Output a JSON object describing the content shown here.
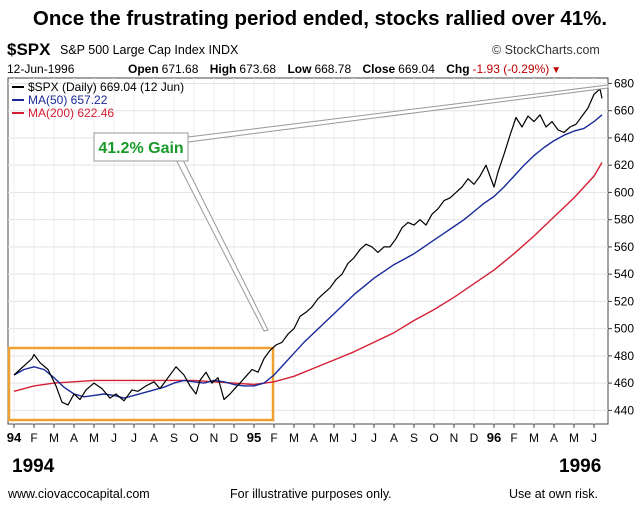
{
  "headline": "Once the frustrating period ended, stocks rallied over 41%.",
  "symbol": "$SPX",
  "subtitle": "S&P 500 Large Cap Index INDX",
  "brand": "© StockCharts.com",
  "date": "12-Jun-1996",
  "quote": {
    "open_label": "Open",
    "open": "671.68",
    "high_label": "High",
    "high": "673.68",
    "low_label": "Low",
    "low": "668.78",
    "close_label": "Close",
    "close": "669.04",
    "chg_label": "Chg",
    "chg": "-1.93 (-0.29%)"
  },
  "footer": {
    "year_start": "1994",
    "year_end": "1996",
    "website": "www.ciovaccocapital.com",
    "disclaimer": "For illustrative purposes only.",
    "risk": "Use at own risk."
  },
  "colors": {
    "price": "#000000",
    "ma50": "#1a2a99",
    "ma200": "#d42035",
    "box": "#f0a030",
    "gain": "#1a9a2a"
  },
  "chart_data": {
    "type": "line",
    "ylim": [
      430,
      684
    ],
    "y_ticks": [
      440,
      460,
      480,
      500,
      520,
      540,
      560,
      580,
      600,
      620,
      640,
      660,
      680
    ],
    "x_labels": [
      "94",
      "F",
      "M",
      "A",
      "M",
      "J",
      "J",
      "A",
      "S",
      "O",
      "N",
      "D",
      "95",
      "F",
      "M",
      "A",
      "M",
      "J",
      "J",
      "A",
      "S",
      "O",
      "N",
      "D",
      "96",
      "F",
      "M",
      "A",
      "M",
      "J"
    ],
    "gain_annotation": "41.2% Gain",
    "legend": [
      {
        "key": "price",
        "label": "$SPX (Daily) 669.04 (12 Jun)"
      },
      {
        "key": "ma50",
        "label": "MA(50) 657.22"
      },
      {
        "key": "ma200",
        "label": "MA(200) 622.46"
      }
    ],
    "series": [
      {
        "name": "$SPX",
        "key": "price",
        "x": [
          0,
          0.3,
          0.6,
          0.9,
          1.0,
          1.3,
          1.7,
          2.1,
          2.4,
          2.7,
          3.0,
          3.3,
          3.6,
          4.0,
          4.4,
          4.8,
          5.1,
          5.5,
          5.9,
          6.2,
          6.6,
          7.0,
          7.3,
          7.7,
          8.1,
          8.5,
          8.8,
          9.1,
          9.3,
          9.6,
          9.9,
          10.2,
          10.5,
          10.8,
          11.1,
          11.3,
          11.6,
          11.9,
          12.2,
          12.5,
          12.8,
          13.1,
          13.4,
          13.7,
          14.0,
          14.3,
          14.6,
          14.9,
          15.2,
          15.5,
          15.8,
          16.1,
          16.4,
          16.7,
          17.0,
          17.3,
          17.6,
          17.9,
          18.2,
          18.5,
          18.8,
          19.1,
          19.4,
          19.7,
          20.0,
          20.3,
          20.6,
          20.9,
          21.2,
          21.5,
          21.8,
          22.1,
          22.4,
          22.7,
          23.0,
          23.3,
          23.6,
          24.0,
          24.2,
          24.5,
          24.8,
          25.1,
          25.4,
          25.7,
          26.0,
          26.3,
          26.6,
          26.9,
          27.2,
          27.5,
          27.8,
          28.1,
          28.4,
          28.7,
          29.0,
          29.3,
          29.4
        ],
        "y": [
          466,
          470,
          474,
          478,
          481,
          475,
          470,
          458,
          446,
          444,
          452,
          448,
          455,
          460,
          456,
          449,
          452,
          447,
          455,
          454,
          458,
          461,
          456,
          464,
          472,
          466,
          458,
          452,
          462,
          468,
          460,
          464,
          448,
          452,
          457,
          460,
          465,
          470,
          468,
          478,
          484,
          488,
          490,
          496,
          500,
          509,
          512,
          516,
          522,
          526,
          530,
          536,
          540,
          548,
          552,
          558,
          562,
          560,
          556,
          560,
          560,
          566,
          574,
          578,
          576,
          580,
          576,
          584,
          588,
          594,
          596,
          600,
          604,
          610,
          606,
          612,
          620,
          604,
          615,
          628,
          642,
          655,
          648,
          656,
          652,
          657,
          648,
          652,
          646,
          644,
          648,
          650,
          656,
          662,
          672,
          676,
          669
        ]
      },
      {
        "name": "MA(50)",
        "key": "ma50",
        "x": [
          0,
          0.5,
          1.0,
          1.5,
          2.0,
          2.5,
          3.0,
          3.5,
          4.0,
          4.5,
          5.0,
          5.5,
          6.0,
          6.5,
          7.0,
          7.5,
          8.0,
          8.5,
          9.0,
          9.5,
          10.0,
          10.5,
          11.0,
          11.5,
          12.0,
          12.5,
          13.0,
          13.5,
          14.0,
          14.5,
          15.0,
          15.5,
          16.0,
          16.5,
          17.0,
          17.5,
          18.0,
          18.5,
          19.0,
          19.5,
          20.0,
          20.5,
          21.0,
          21.5,
          22.0,
          22.5,
          23.0,
          23.5,
          24.0,
          24.5,
          25.0,
          25.5,
          26.0,
          26.5,
          27.0,
          27.5,
          28.0,
          28.5,
          29.0,
          29.4
        ],
        "y": [
          466,
          470,
          472,
          470,
          464,
          457,
          452,
          450,
          451,
          452,
          451,
          449,
          451,
          453,
          455,
          457,
          460,
          462,
          461,
          460,
          462,
          461,
          459,
          458,
          458,
          460,
          466,
          474,
          482,
          490,
          497,
          504,
          511,
          518,
          525,
          531,
          537,
          542,
          547,
          551,
          555,
          560,
          565,
          570,
          575,
          580,
          586,
          592,
          597,
          604,
          612,
          620,
          627,
          633,
          638,
          642,
          645,
          647,
          652,
          657
        ]
      },
      {
        "name": "MA(200)",
        "key": "ma200",
        "x": [
          0,
          1,
          2,
          3,
          4,
          5,
          6,
          7,
          8,
          9,
          10,
          11,
          12,
          13,
          14,
          15,
          16,
          17,
          18,
          19,
          20,
          21,
          22,
          23,
          24,
          25,
          26,
          27,
          28,
          29,
          29.4
        ],
        "y": [
          454,
          458,
          460,
          461,
          462,
          462,
          462,
          462,
          462,
          462,
          461,
          460,
          459,
          461,
          465,
          471,
          477,
          483,
          490,
          497,
          506,
          514,
          523,
          533,
          543,
          555,
          568,
          582,
          596,
          612,
          622
        ]
      }
    ]
  }
}
